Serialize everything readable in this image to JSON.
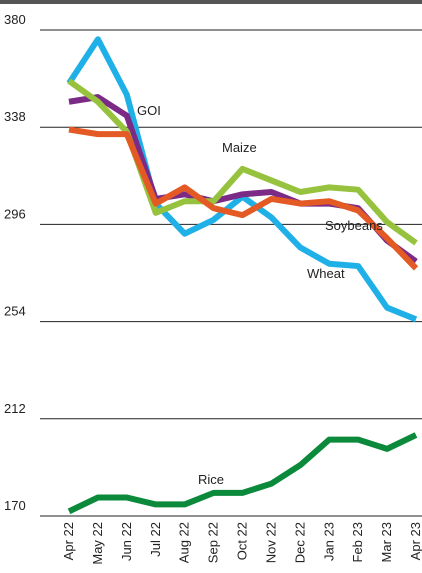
{
  "chart_data": {
    "type": "line",
    "categories": [
      "Apr 22",
      "May 22",
      "Jun 22",
      "Jul 22",
      "Aug 22",
      "Sep 22",
      "Oct 22",
      "Nov 22",
      "Dec 22",
      "Jan 23",
      "Feb 23",
      "Mar 23",
      "Apr 23"
    ],
    "series": [
      {
        "name": "Wheat",
        "color": "#1fb0e8",
        "values": [
          357,
          376,
          352,
          305,
          292,
          298,
          308,
          299,
          286,
          279,
          278,
          260,
          255
        ]
      },
      {
        "name": "GOI",
        "color": "#7b2a86",
        "values": [
          349,
          351,
          343,
          307,
          309,
          306,
          309,
          310,
          305,
          305,
          303,
          289,
          280
        ]
      },
      {
        "name": "Maize",
        "color": "#96c23d",
        "values": [
          358,
          349,
          336,
          301,
          306,
          306,
          320,
          315,
          310,
          312,
          311,
          297,
          288
        ]
      },
      {
        "name": "Soybeans",
        "color": "#e35a24",
        "values": [
          337,
          335,
          335,
          305,
          312,
          303,
          300,
          307,
          305,
          306,
          302,
          290,
          277
        ]
      },
      {
        "name": "Rice",
        "color": "#0c8a3c",
        "values": [
          172,
          178,
          178,
          175,
          175,
          180,
          180,
          184,
          192,
          203,
          203,
          199,
          205
        ]
      }
    ],
    "ylim": [
      170,
      380
    ],
    "yticks": [
      170,
      212,
      254,
      296,
      338,
      380
    ],
    "grid": true
  }
}
